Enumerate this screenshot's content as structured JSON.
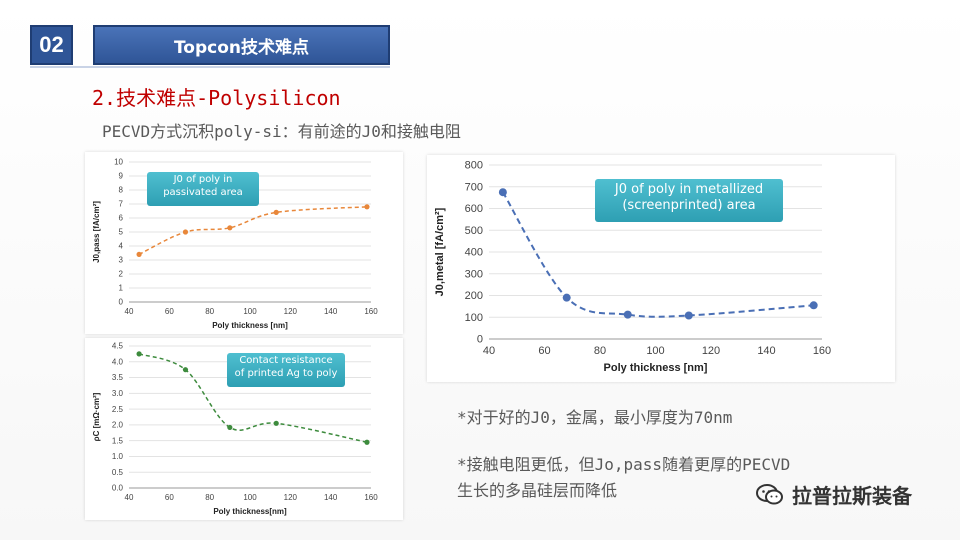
{
  "header": {
    "number": "02",
    "title": "Topcon技术难点"
  },
  "section_title": "2.技术难点-Polysilicon",
  "subtitle": "PECVD方式沉积poly-si：有前途的J0和接触电阻",
  "callouts": {
    "chart1": [
      "J0 of poly in",
      "passivated area"
    ],
    "chart2": [
      "Contact resistance",
      "of printed Ag to poly"
    ],
    "chart3": [
      "J0 of poly in metallized",
      "(screenprinted) area"
    ]
  },
  "notes": {
    "note1": "*对于好的J0，金属，最小厚度为70nm",
    "note2_line1": "*接触电阻更低，但Jo,pass随着更厚的PECVD",
    "note2_line2": "生长的多晶硅层而降低"
  },
  "logo": {
    "text": "拉普拉斯装备",
    "icon": "wechat-icon"
  },
  "colors": {
    "orange": "#e8873a",
    "green": "#3d8b3d",
    "blue": "#4a6fb5",
    "title_red": "#c00000",
    "header_blue": "#2f5597"
  },
  "chart_data": [
    {
      "type": "line",
      "title": "",
      "xlabel": "Poly thickness [nm]",
      "ylabel": "J0,pass [fA/cm²]",
      "xlim": [
        40,
        160
      ],
      "ylim": [
        0,
        10
      ],
      "x_ticks": [
        40,
        60,
        80,
        100,
        120,
        140,
        160
      ],
      "y_ticks": [
        0,
        1,
        2,
        3,
        4,
        5,
        6,
        7,
        8,
        9,
        10
      ],
      "grid": true,
      "series": [
        {
          "x": [
            45,
            68,
            90,
            113,
            158
          ],
          "y": [
            3.4,
            5.0,
            5.3,
            6.4,
            6.8
          ]
        }
      ]
    },
    {
      "type": "line",
      "title": "",
      "xlabel": "Poly thickness[nm]",
      "ylabel": "ρC [mΩ·cm²]",
      "xlim": [
        40,
        160
      ],
      "ylim": [
        0,
        4.5
      ],
      "x_ticks": [
        40,
        60,
        80,
        100,
        120,
        140,
        160
      ],
      "y_ticks": [
        0,
        0.5,
        1.0,
        1.5,
        2.0,
        2.5,
        3.0,
        3.5,
        4.0,
        4.5
      ],
      "grid": true,
      "series": [
        {
          "x": [
            45,
            68,
            90,
            113,
            158
          ],
          "y": [
            4.25,
            3.75,
            1.92,
            2.05,
            1.45
          ]
        }
      ]
    },
    {
      "type": "line",
      "title": "",
      "xlabel": "Poly thickness [nm]",
      "ylabel": "J0,metal [fA/cm²]",
      "xlim": [
        40,
        160
      ],
      "ylim": [
        0,
        800
      ],
      "x_ticks": [
        40,
        60,
        80,
        100,
        120,
        140,
        160
      ],
      "y_ticks": [
        0,
        100,
        200,
        300,
        400,
        500,
        600,
        700,
        800
      ],
      "grid": true,
      "series": [
        {
          "x": [
            45,
            68,
            90,
            112,
            157
          ],
          "y": [
            675,
            190,
            112,
            108,
            155
          ]
        }
      ]
    }
  ]
}
